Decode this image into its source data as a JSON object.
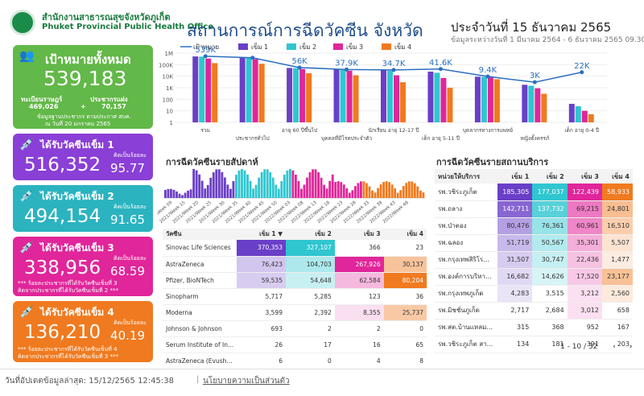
{
  "header": {
    "org_th": "สำนักงานสาธารณสุขจังหวัดภูเก็ต",
    "org_en": "Phuket Provincial Public Health Office",
    "title": "สถานการณ์การฉีดวัคซีน จังหวัด",
    "title2": "ภูเก็ต",
    "date": "ประจำวันที่ 15 ธันวาคม 2565",
    "date_range": "ข้อมูลระหว่างวันที่ 1 มีนาคม 2564 - 6 ธันวาคม 2565 09.30 น."
  },
  "colors": {
    "green": "#62b848",
    "purple": "#8a3fd6",
    "teal": "#2bb3c0",
    "pink": "#e0269a",
    "orange": "#f07a1f",
    "dose1": "#6a3fc7",
    "dose2": "#2fc6d0",
    "dose3": "#e0269a",
    "dose4": "#f07a1f"
  },
  "target": {
    "title": "เป้าหมายทั้งหมด",
    "value": "539,183",
    "reg_label": "ทะเบียนราษฎร์",
    "reg_value": "469,026",
    "plus": "+",
    "pop_label": "ประชากรแฝง",
    "pop_value": "70,157",
    "note1": "ข้อมูลฐานประชากร ตามประกาศ สบค.",
    "note2": "ณ วันที่ 20 มกราคม 2565"
  },
  "dose_cards": [
    {
      "title": "ได้รับวัคซีนเข็ม 1",
      "value": "516,352",
      "pct_label": "คิดเป็นร้อยละ",
      "pct": "95.77",
      "note1": "",
      "note2": ""
    },
    {
      "title": "ได้รับวัคซีนเข็ม 2",
      "value": "494,154",
      "pct_label": "คิดเป็นร้อยละ",
      "pct": "91.65",
      "note1": "",
      "note2": ""
    },
    {
      "title": "ได้รับวัคซีนเข็ม 3",
      "value": "338,956",
      "pct_label": "คิดเป็นร้อยละ",
      "pct": "68.59",
      "note1": "*** ร้อยละประชากรที่ได้รับวัคซีนเข็มที่ 3",
      "note2": "คิดจากประชากรที่ได้รับวัคซีนเข็มที่ 2 ***"
    },
    {
      "title": "ได้รับวัคซีนเข็ม 4",
      "value": "136,210",
      "pct_label": "คิดเป็นร้อยละ",
      "pct": "40.19",
      "note1": "*** ร้อยละประชากรที่ได้รับวัคซีนเข็มที่ 4",
      "note2": "คิดจากประชากรที่ได้รับวัคซีนเข็มที่ 3 ***"
    }
  ],
  "chart_data": [
    {
      "type": "bar",
      "legend": [
        "เป้าหมาย",
        "เข็ม 1",
        "เข็ม 2",
        "เข็ม 3",
        "เข็ม 4"
      ],
      "categories": [
        "รวม",
        "ประชากรทั่วไป",
        "อายุ 60 ปีขึ้นไป",
        "บุคคลที่มีโรคประจำตัว",
        "นักเรียน อายุ 12-17 ปี",
        "เด็ก อายุ 5-11 ปี",
        "บุคลากรทางการแพทย์",
        "หญิงตั้งครรภ์",
        "เด็ก อายุ 0-4 ปี"
      ],
      "target_labels": [
        "539K",
        "",
        "56K",
        "37.9K",
        "34.7K",
        "41.6K",
        "9.4K",
        "3K",
        "22K"
      ],
      "target": [
        539183,
        400000,
        56000,
        37900,
        34700,
        41600,
        9400,
        3000,
        22000
      ],
      "series": [
        {
          "name": "เข็ม 1",
          "values": [
            516352,
            450000,
            52000,
            38000,
            33000,
            25000,
            9000,
            1800,
            40
          ]
        },
        {
          "name": "เข็ม 2",
          "values": [
            494154,
            420000,
            50000,
            36000,
            30000,
            20000,
            8800,
            1500,
            25
          ]
        },
        {
          "name": "เข็ม 3",
          "values": [
            338956,
            300000,
            42000,
            30000,
            12000,
            7000,
            8000,
            900,
            10
          ]
        },
        {
          "name": "เข็ม 4",
          "values": [
            136210,
            120000,
            18000,
            12000,
            3000,
            1000,
            5500,
            300,
            5
          ]
        }
      ],
      "y_ticks": [
        "1M",
        "100K",
        "10K",
        "1K",
        "100",
        "10",
        "1"
      ],
      "scale": "log"
    },
    {
      "type": "bar",
      "title": "การฉีดวัคซีนรายสัปดาห์",
      "categories": [
        "2021/Week 09",
        "2021/Week 15",
        "2021/Week 20",
        "2021/Week 25",
        "2021/Week 30",
        "2021/Week 35",
        "2021/Week 40",
        "2021/Week 45",
        "2021/Week 50",
        "2022/Week 03",
        "2022/Week 08",
        "2022/Week 13",
        "2022/Week 18",
        "2022/Week 23",
        "2022/Week 28",
        "2022/Week 33",
        "2022/Week 38",
        "2022/Week 43",
        "2022/Week 48"
      ]
    }
  ],
  "vaccine_table": {
    "headers": [
      "วัคซีน",
      "เข็ม 1 ▼",
      "เข็ม 2",
      "เข็ม 3",
      "เข็ม 4"
    ],
    "rows": [
      [
        "Sinovac Life Sciences",
        "370,353",
        "327,107",
        "366",
        "23"
      ],
      [
        "AstraZeneca",
        "76,423",
        "104,703",
        "267,926",
        "30,137"
      ],
      [
        "Pfizer, BioNTech",
        "59,535",
        "54,648",
        "62,584",
        "80,204"
      ],
      [
        "Sinopharm",
        "5,717",
        "5,285",
        "123",
        "36"
      ],
      [
        "Moderna",
        "3,599",
        "2,392",
        "8,355",
        "25,737"
      ],
      [
        "Johnson & Johnson",
        "693",
        "2",
        "2",
        "0"
      ],
      [
        "Serum Institute of In...",
        "26",
        "17",
        "16",
        "65"
      ],
      [
        "AstraZeneca (Evush...",
        "6",
        "0",
        "4",
        "8"
      ]
    ]
  },
  "facility_table": {
    "title": "การฉีดวัคซีนรายสถานบริการ",
    "headers": [
      "หน่วยให้บริการ",
      "เข็ม 1",
      "เข็ม 2",
      "เข็ม 3",
      "เข็ม 4"
    ],
    "rows": [
      [
        "รพ.วชิระภูเก็ต",
        "185,305",
        "177,037",
        "122,439",
        "58,933"
      ],
      [
        "รพ.ถลาง",
        "142,711",
        "137,732",
        "69,215",
        "24,801"
      ],
      [
        "รพ.ป่าตอง",
        "80,476",
        "76,361",
        "60,961",
        "16,510"
      ],
      [
        "รพ.ฉลอง",
        "51,719",
        "50,567",
        "35,301",
        "5,507"
      ],
      [
        "รพ.กรุงเทพสิริโร...",
        "31,507",
        "30,747",
        "22,436",
        "1,477"
      ],
      [
        "รพ.องค์การบริหา...",
        "16,682",
        "14,626",
        "17,520",
        "23,177"
      ],
      [
        "รพ.กรุงเทพภูเก็ต",
        "4,283",
        "3,515",
        "3,212",
        "2,560"
      ],
      [
        "รพ.มิชชั่นภูเก็ต",
        "2,717",
        "2,684",
        "3,012",
        "658"
      ],
      [
        "รพ.สต.บ้านแหลม...",
        "315",
        "368",
        "952",
        "167"
      ],
      [
        "รพ.วชิระภูเก็ต สา...",
        "134",
        "181",
        "391",
        "203"
      ]
    ],
    "pager": "1 - 10 / 32"
  },
  "footer": {
    "updated": "วันที่อัปเดตข้อมูลล่าสุด: 15/12/2565 12:45:38",
    "policy": "นโยบายความเป็นส่วนตัว"
  }
}
